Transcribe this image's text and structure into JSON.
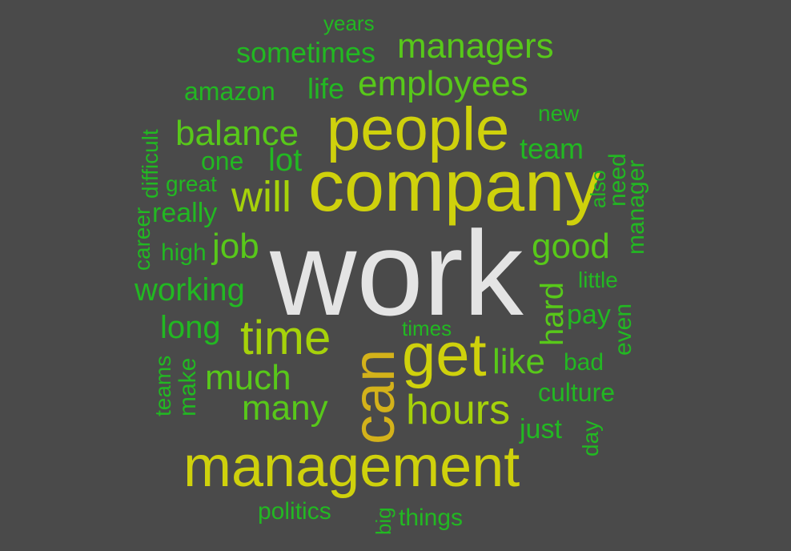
{
  "palette": {
    "background": "#4a4a4a",
    "white": "#e4e4e4",
    "yellow": "#cfd10c",
    "gold": "#d4b21a",
    "lime": "#a6d20a",
    "green_light": "#58c81a",
    "green": "#22b822"
  },
  "words": {
    "work": "work",
    "company": "company",
    "people": "people",
    "management": "management",
    "can": "can",
    "get": "get",
    "time": "time",
    "will": "will",
    "hours": "hours",
    "employees": "employees",
    "managers": "managers",
    "balance": "balance",
    "job": "job",
    "good": "good",
    "much": "much",
    "many": "many",
    "like": "like",
    "working": "working",
    "long": "long",
    "lot": "lot",
    "team": "team",
    "hard": "hard",
    "sometimes": "sometimes",
    "amazon": "amazon",
    "life": "life",
    "years": "years",
    "one": "one",
    "great": "great",
    "really": "really",
    "difficult": "difficult",
    "career": "career",
    "high": "high",
    "new": "new",
    "also": "also",
    "need": "need",
    "manager": "manager",
    "little": "little",
    "pay": "pay",
    "even": "even",
    "times": "times",
    "bad": "bad",
    "culture": "culture",
    "just": "just",
    "day": "day",
    "teams": "teams",
    "make": "make",
    "politics": "politics",
    "big": "big",
    "things": "things"
  }
}
